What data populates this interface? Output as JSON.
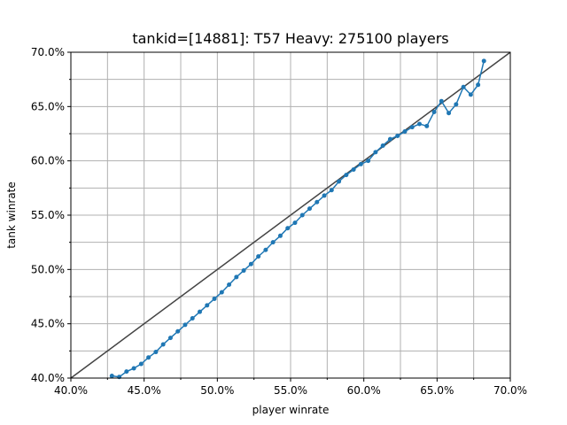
{
  "chart_data": {
    "type": "line",
    "title": "tankid=[14881]: T57 Heavy: 275100 players",
    "xlabel": "player winrate",
    "ylabel": "tank winrate",
    "xlim": [
      40,
      70
    ],
    "ylim": [
      40,
      70
    ],
    "xticks": [
      {
        "value": 40,
        "label": "40.0%"
      },
      {
        "value": 45,
        "label": "45.0%"
      },
      {
        "value": 50,
        "label": "50.0%"
      },
      {
        "value": 55,
        "label": "55.0%"
      },
      {
        "value": 60,
        "label": "60.0%"
      },
      {
        "value": 65,
        "label": "65.0%"
      },
      {
        "value": 70,
        "label": "70.0%"
      }
    ],
    "yticks": [
      {
        "value": 40,
        "label": "40.0%"
      },
      {
        "value": 45,
        "label": "45.0%"
      },
      {
        "value": 50,
        "label": "50.0%"
      },
      {
        "value": 55,
        "label": "55.0%"
      },
      {
        "value": 60,
        "label": "60.0%"
      },
      {
        "value": 65,
        "label": "65.0%"
      },
      {
        "value": 70,
        "label": "70.0%"
      }
    ],
    "xminorticks": [
      42.5,
      47.5,
      52.5,
      57.5,
      62.5,
      67.5
    ],
    "yminorticks": [
      42.5,
      47.5,
      52.5,
      57.5,
      62.5,
      67.5
    ],
    "grid": true,
    "reference_line": {
      "x": [
        40,
        70
      ],
      "y": [
        40,
        70
      ],
      "color": "#444444"
    },
    "series": [
      {
        "color": "#1f77b4",
        "x": [
          42.8,
          43.3,
          43.8,
          44.3,
          44.8,
          45.3,
          45.8,
          46.3,
          46.8,
          47.3,
          47.8,
          48.3,
          48.8,
          49.3,
          49.8,
          50.3,
          50.8,
          51.3,
          51.8,
          52.3,
          52.8,
          53.3,
          53.8,
          54.3,
          54.8,
          55.3,
          55.8,
          56.3,
          56.8,
          57.3,
          57.8,
          58.3,
          58.8,
          59.3,
          59.8,
          60.3,
          60.8,
          61.3,
          61.8,
          62.3,
          62.8,
          63.3,
          63.8,
          64.3,
          64.8,
          65.3,
          65.8,
          66.3,
          66.8,
          67.3,
          67.8,
          68.2
        ],
        "values": [
          40.2,
          40.1,
          40.6,
          40.9,
          41.3,
          41.9,
          42.4,
          43.1,
          43.7,
          44.3,
          44.9,
          45.5,
          46.1,
          46.7,
          47.3,
          47.9,
          48.6,
          49.3,
          49.9,
          50.5,
          51.2,
          51.8,
          52.5,
          53.1,
          53.8,
          54.3,
          55.0,
          55.6,
          56.2,
          56.8,
          57.3,
          58.1,
          58.7,
          59.2,
          59.7,
          60.0,
          60.8,
          61.4,
          62.0,
          62.3,
          62.7,
          63.1,
          63.4,
          63.2,
          64.5,
          65.5,
          64.4,
          65.2,
          66.8,
          66.1,
          67.0,
          69.2
        ]
      }
    ]
  }
}
